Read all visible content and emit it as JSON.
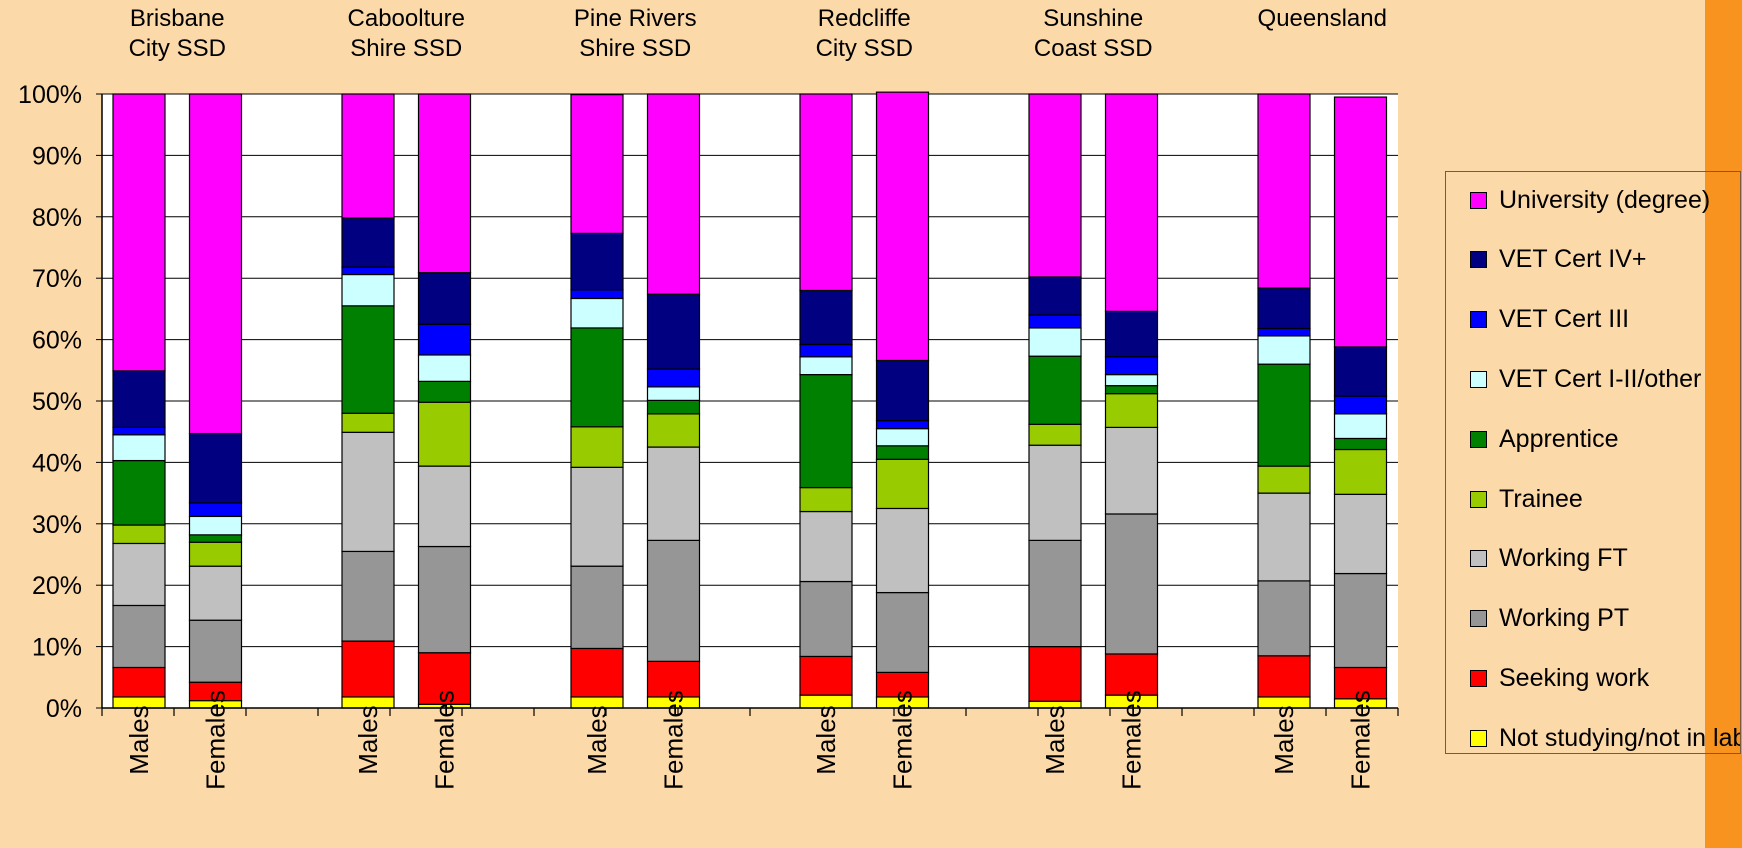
{
  "chart_data": {
    "type": "bar",
    "stacked": true,
    "percent_stacked": true,
    "ylim": [
      0,
      100
    ],
    "yticks": [
      "0%",
      "10%",
      "20%",
      "30%",
      "40%",
      "50%",
      "60%",
      "70%",
      "80%",
      "90%",
      "100%"
    ],
    "grid": true,
    "legend_position": "right",
    "groups": [
      {
        "label": [
          "Brisbane",
          "City SSD"
        ],
        "bars": [
          "Males",
          "Females"
        ]
      },
      {
        "label": [
          "Caboolture",
          "Shire SSD"
        ],
        "bars": [
          "Males",
          "Females"
        ]
      },
      {
        "label": [
          "Pine Rivers",
          "Shire SSD"
        ],
        "bars": [
          "Males",
          "Females"
        ]
      },
      {
        "label": [
          "Redcliffe",
          "City SSD"
        ],
        "bars": [
          "Males",
          "Females"
        ]
      },
      {
        "label": [
          "Sunshine",
          "Coast SSD"
        ],
        "bars": [
          "Males",
          "Females"
        ]
      },
      {
        "label": [
          "Queensland",
          ""
        ],
        "bars": [
          "Males",
          "Females"
        ]
      }
    ],
    "series": [
      {
        "name": "Not studying/not in labour force",
        "color": "#ffff00",
        "values": [
          [
            1.8,
            1.2
          ],
          [
            1.8,
            0.6
          ],
          [
            1.8,
            1.8
          ],
          [
            2.1,
            1.8
          ],
          [
            1.1,
            2.1
          ],
          [
            1.8,
            1.5
          ]
        ]
      },
      {
        "name": "Seeking work",
        "color": "#ff0000",
        "values": [
          [
            4.8,
            3.0
          ],
          [
            9.1,
            8.4
          ],
          [
            7.9,
            5.8
          ],
          [
            6.3,
            4.0
          ],
          [
            8.9,
            6.7
          ],
          [
            6.7,
            5.1
          ]
        ]
      },
      {
        "name": "Working PT",
        "color": "#969696",
        "values": [
          [
            10.1,
            10.1
          ],
          [
            14.6,
            17.3
          ],
          [
            13.4,
            19.7
          ],
          [
            12.2,
            13.0
          ],
          [
            17.3,
            22.8
          ],
          [
            12.2,
            15.3
          ]
        ]
      },
      {
        "name": "Working FT",
        "color": "#c0c0c0",
        "values": [
          [
            10.1,
            8.8
          ],
          [
            19.4,
            13.1
          ],
          [
            16.1,
            15.2
          ],
          [
            11.4,
            13.7
          ],
          [
            15.5,
            14.1
          ],
          [
            14.3,
            12.9
          ]
        ]
      },
      {
        "name": "Trainee",
        "color": "#99cc00",
        "values": [
          [
            3.0,
            3.9
          ],
          [
            3.1,
            10.4
          ],
          [
            6.6,
            5.4
          ],
          [
            3.9,
            8.0
          ],
          [
            3.4,
            5.5
          ],
          [
            4.4,
            7.3
          ]
        ]
      },
      {
        "name": "Apprentice",
        "color": "#008000",
        "values": [
          [
            10.5,
            1.2
          ],
          [
            17.5,
            3.4
          ],
          [
            16.1,
            2.2
          ],
          [
            18.4,
            2.2
          ],
          [
            11.1,
            1.3
          ],
          [
            16.6,
            1.8
          ]
        ]
      },
      {
        "name": "VET Cert I-II/other",
        "color": "#ccffff",
        "values": [
          [
            4.2,
            3.0
          ],
          [
            5.1,
            4.3
          ],
          [
            4.8,
            2.2
          ],
          [
            2.9,
            2.8
          ],
          [
            4.6,
            1.8
          ],
          [
            4.6,
            4.0
          ]
        ]
      },
      {
        "name": "VET Cert III",
        "color": "#0000ff",
        "values": [
          [
            1.2,
            2.2
          ],
          [
            1.2,
            5.0
          ],
          [
            1.4,
            2.9
          ],
          [
            2.0,
            1.3
          ],
          [
            2.1,
            2.9
          ],
          [
            1.2,
            2.9
          ]
        ]
      },
      {
        "name": "VET Cert IV+",
        "color": "#000080",
        "values": [
          [
            9.2,
            11.3
          ],
          [
            8.0,
            8.4
          ],
          [
            9.2,
            12.2
          ],
          [
            8.8,
            9.8
          ],
          [
            6.2,
            7.4
          ],
          [
            6.6,
            8.0
          ]
        ]
      },
      {
        "name": "University (degree)",
        "color": "#ff00ff",
        "values": [
          [
            45.1,
            55.3
          ],
          [
            20.2,
            29.1
          ],
          [
            22.6,
            32.6
          ],
          [
            32.0,
            43.7
          ],
          [
            29.8,
            35.4
          ],
          [
            31.6,
            40.7
          ]
        ]
      }
    ]
  },
  "legend_items": [
    {
      "label": "University (degree)",
      "color": "#ff00ff"
    },
    {
      "label": "VET Cert IV+",
      "color": "#000080"
    },
    {
      "label": "VET Cert III",
      "color": "#0000ff"
    },
    {
      "label": "VET Cert I-II/other",
      "color": "#ccffff"
    },
    {
      "label": "Apprentice",
      "color": "#008000"
    },
    {
      "label": "Trainee",
      "color": "#99cc00"
    },
    {
      "label": "Working FT",
      "color": "#c0c0c0"
    },
    {
      "label": "Working PT",
      "color": "#969696"
    },
    {
      "label": "Seeking work",
      "color": "#ff0000"
    },
    {
      "label": "Not studying/not in labour force",
      "color": "#ffff00"
    }
  ],
  "colors": {
    "background": "#fcd9a8",
    "accent_stripe": "#f7931e",
    "plot_area": "#ffffff"
  }
}
